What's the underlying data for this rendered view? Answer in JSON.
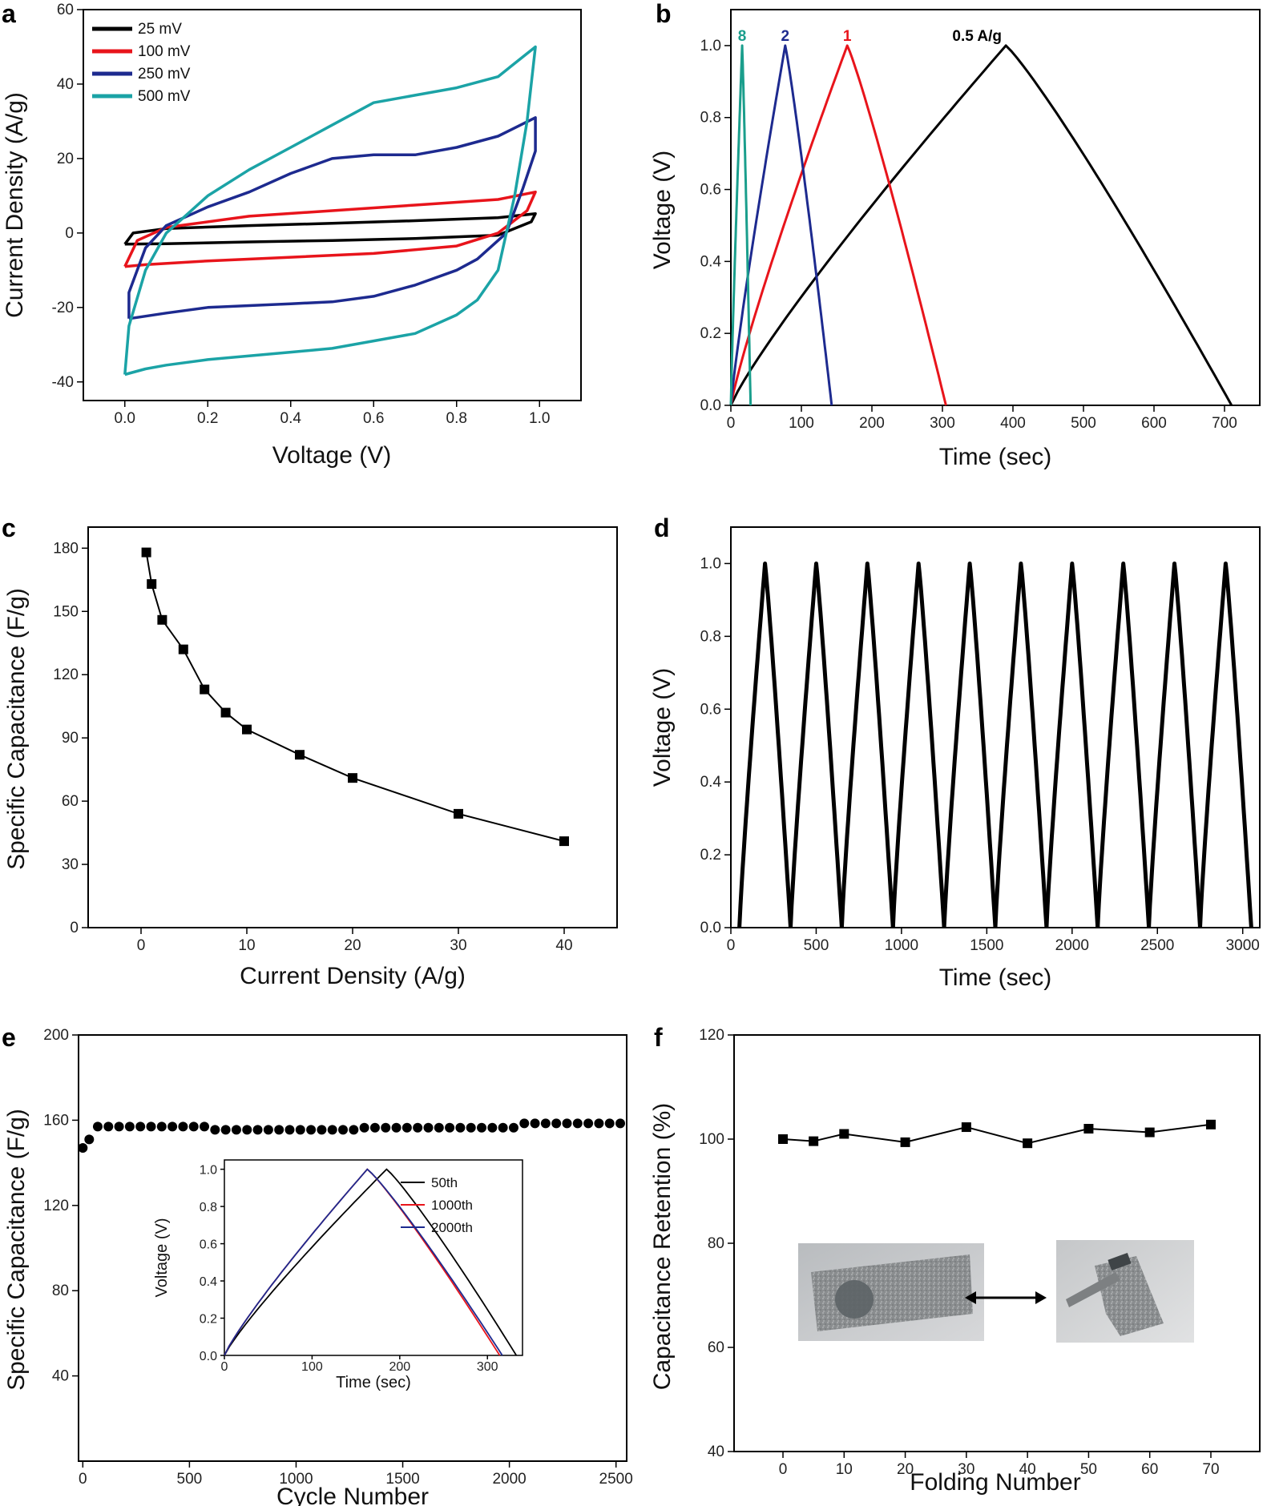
{
  "chart_data": [
    {
      "id": "a",
      "panel_label": "a",
      "type": "line",
      "xlabel": "Voltage (V)",
      "ylabel": "Current Density (A/g)",
      "xlim": [
        -0.1,
        1.1
      ],
      "ylim": [
        -45,
        60
      ],
      "xticks": [
        0.0,
        0.2,
        0.4,
        0.6,
        0.8,
        1.0
      ],
      "xtick_labels": [
        "0.0",
        "0.2",
        "0.4",
        "0.6",
        "0.8",
        "1.0"
      ],
      "yticks": [
        -40,
        -20,
        0,
        20,
        40,
        60
      ],
      "ytick_labels": [
        "-40",
        "-20",
        "0",
        "20",
        "40",
        "60"
      ],
      "legend_position": "top-left",
      "series": [
        {
          "name": "25 mV",
          "color": "#000000",
          "upper": [
            [
              0,
              -3
            ],
            [
              0.02,
              0
            ],
            [
              0.1,
              1.2
            ],
            [
              0.3,
              2
            ],
            [
              0.5,
              2.6
            ],
            [
              0.7,
              3.3
            ],
            [
              0.9,
              4.1
            ],
            [
              0.99,
              5.2
            ]
          ],
          "lower": [
            [
              0.99,
              5.2
            ],
            [
              0.98,
              3
            ],
            [
              0.9,
              -0.6
            ],
            [
              0.7,
              -1.5
            ],
            [
              0.5,
              -2
            ],
            [
              0.3,
              -2.4
            ],
            [
              0.1,
              -2.9
            ],
            [
              0,
              -3
            ]
          ]
        },
        {
          "name": "100 mV",
          "color": "#e8141b",
          "upper": [
            [
              0,
              -9
            ],
            [
              0.03,
              -2
            ],
            [
              0.1,
              1.5
            ],
            [
              0.3,
              4.5
            ],
            [
              0.5,
              6
            ],
            [
              0.7,
              7.5
            ],
            [
              0.9,
              9
            ],
            [
              0.99,
              11
            ]
          ],
          "lower": [
            [
              0.99,
              11
            ],
            [
              0.97,
              6
            ],
            [
              0.9,
              0
            ],
            [
              0.8,
              -3.5
            ],
            [
              0.6,
              -5.5
            ],
            [
              0.4,
              -6.5
            ],
            [
              0.2,
              -7.5
            ],
            [
              0.05,
              -8.5
            ],
            [
              0,
              -9
            ]
          ]
        },
        {
          "name": "250 mV",
          "color": "#1d2a8f",
          "upper": [
            [
              0.01,
              -23
            ],
            [
              0.01,
              -16
            ],
            [
              0.05,
              -4
            ],
            [
              0.1,
              2
            ],
            [
              0.2,
              7
            ],
            [
              0.3,
              11
            ],
            [
              0.4,
              16
            ],
            [
              0.5,
              20
            ],
            [
              0.6,
              21
            ],
            [
              0.7,
              21
            ],
            [
              0.8,
              23
            ],
            [
              0.9,
              26
            ],
            [
              0.99,
              31
            ]
          ],
          "lower": [
            [
              0.99,
              31
            ],
            [
              0.99,
              22
            ],
            [
              0.96,
              12
            ],
            [
              0.92,
              0
            ],
            [
              0.85,
              -7
            ],
            [
              0.8,
              -10
            ],
            [
              0.7,
              -14
            ],
            [
              0.6,
              -17
            ],
            [
              0.5,
              -18.5
            ],
            [
              0.4,
              -19
            ],
            [
              0.3,
              -19.5
            ],
            [
              0.2,
              -20
            ],
            [
              0.1,
              -21.5
            ],
            [
              0.01,
              -23
            ]
          ]
        },
        {
          "name": "500 mV",
          "color": "#1ba3a6",
          "upper": [
            [
              0,
              -38
            ],
            [
              0.01,
              -25
            ],
            [
              0.05,
              -10
            ],
            [
              0.1,
              0
            ],
            [
              0.2,
              10
            ],
            [
              0.3,
              17
            ],
            [
              0.4,
              23
            ],
            [
              0.5,
              29
            ],
            [
              0.6,
              35
            ],
            [
              0.7,
              37
            ],
            [
              0.8,
              39
            ],
            [
              0.9,
              42
            ],
            [
              0.99,
              50
            ]
          ],
          "lower": [
            [
              0.99,
              50
            ],
            [
              0.97,
              30
            ],
            [
              0.94,
              10
            ],
            [
              0.9,
              -10
            ],
            [
              0.85,
              -18
            ],
            [
              0.8,
              -22
            ],
            [
              0.7,
              -27
            ],
            [
              0.6,
              -29
            ],
            [
              0.5,
              -31
            ],
            [
              0.4,
              -32
            ],
            [
              0.3,
              -33
            ],
            [
              0.2,
              -34
            ],
            [
              0.1,
              -35.5
            ],
            [
              0.05,
              -36.5
            ],
            [
              0,
              -38
            ]
          ]
        }
      ]
    },
    {
      "id": "b",
      "panel_label": "b",
      "type": "line",
      "xlabel": "Time (sec)",
      "ylabel": "Voltage (V)",
      "xlim": [
        0,
        750
      ],
      "ylim": [
        0,
        1.1
      ],
      "xticks": [
        0,
        100,
        200,
        300,
        400,
        500,
        600,
        700
      ],
      "xtick_labels": [
        "0",
        "100",
        "200",
        "300",
        "400",
        "500",
        "600",
        "700"
      ],
      "yticks": [
        0.0,
        0.2,
        0.4,
        0.6,
        0.8,
        1.0
      ],
      "ytick_labels": [
        "0.0",
        "0.2",
        "0.4",
        "0.6",
        "0.8",
        "1.0"
      ],
      "series": [
        {
          "name": "0.5 A/g",
          "color": "#000000",
          "peak_time": 390,
          "end_time": 710
        },
        {
          "name": "1",
          "color": "#e8141b",
          "peak_time": 165,
          "end_time": 305
        },
        {
          "name": "2",
          "color": "#1d2a8f",
          "peak_time": 77,
          "end_time": 143
        },
        {
          "name": "8",
          "color": "#1a9e8c",
          "peak_time": 16,
          "end_time": 28
        }
      ]
    },
    {
      "id": "c",
      "panel_label": "c",
      "type": "line",
      "xlabel": "Current Density (A/g)",
      "ylabel": "Specific Capacitance (F/g)",
      "xlim": [
        -5,
        45
      ],
      "ylim": [
        0,
        190
      ],
      "xticks": [
        0,
        10,
        20,
        30,
        40
      ],
      "xtick_labels": [
        "0",
        "10",
        "20",
        "30",
        "40"
      ],
      "yticks": [
        0,
        30,
        60,
        90,
        120,
        150,
        180
      ],
      "ytick_labels": [
        "0",
        "30",
        "60",
        "90",
        "120",
        "150",
        "180"
      ],
      "x": [
        0.5,
        1,
        2,
        4,
        6,
        8,
        10,
        15,
        20,
        30,
        40
      ],
      "values": [
        178,
        163,
        146,
        132,
        113,
        102,
        94,
        82,
        71,
        54,
        41
      ]
    },
    {
      "id": "d",
      "panel_label": "d",
      "type": "line",
      "xlabel": "Time (sec)",
      "ylabel": "Voltage (V)",
      "xlim": [
        0,
        3100
      ],
      "ylim": [
        0,
        1.1
      ],
      "xticks": [
        0,
        500,
        1000,
        1500,
        2000,
        2500,
        3000
      ],
      "xtick_labels": [
        "0",
        "500",
        "1000",
        "1500",
        "2000",
        "2500",
        "3000"
      ],
      "yticks": [
        0.0,
        0.2,
        0.4,
        0.6,
        0.8,
        1.0
      ],
      "ytick_labels": [
        "0.0",
        "0.2",
        "0.4",
        "0.6",
        "0.8",
        "1.0"
      ],
      "cycles": 10,
      "first_start": 50,
      "charge_time": 150,
      "discharge_time": 150,
      "period": 300
    },
    {
      "id": "e",
      "panel_label": "e",
      "type": "scatter",
      "xlabel": "Cycle Number",
      "ylabel": "Specific Capacitance (F/g)",
      "xlim": [
        -20,
        2550
      ],
      "ylim": [
        0,
        200
      ],
      "xticks": [
        0,
        500,
        1000,
        1500,
        2000,
        2500
      ],
      "xtick_labels": [
        "0",
        "500",
        "1000",
        "1500",
        "2000",
        "2500"
      ],
      "yticks": [
        40,
        80,
        120,
        160,
        200
      ],
      "ytick_labels": [
        "40",
        "80",
        "120",
        "160",
        "200"
      ],
      "x": [
        0,
        30,
        70,
        120,
        170,
        220,
        270,
        320,
        370,
        420,
        470,
        520,
        570,
        620,
        670,
        720,
        770,
        820,
        870,
        920,
        970,
        1020,
        1070,
        1120,
        1170,
        1220,
        1270,
        1320,
        1370,
        1420,
        1470,
        1520,
        1570,
        1620,
        1670,
        1720,
        1770,
        1820,
        1870,
        1920,
        1970,
        2020,
        2070,
        2120,
        2170,
        2220,
        2270,
        2320,
        2370,
        2420,
        2470,
        2520
      ],
      "values": [
        147,
        151,
        157,
        157,
        157,
        157,
        157,
        157,
        157,
        157,
        157,
        157,
        157,
        155.5,
        155.5,
        155.5,
        155.5,
        155.5,
        155.5,
        155.5,
        155.5,
        155.5,
        155.5,
        155.5,
        155.5,
        155.5,
        155.5,
        156.5,
        156.5,
        156.5,
        156.5,
        156.5,
        156.5,
        156.5,
        156.5,
        156.5,
        156.5,
        156.5,
        156.5,
        156.5,
        156.5,
        156.5,
        158.5,
        158.5,
        158.5,
        158.5,
        158.5,
        158.5,
        158.5,
        158.5,
        158.5,
        158.5
      ],
      "inset": {
        "xlabel": "Time (sec)",
        "ylabel": "Voltage (V)",
        "xlim": [
          0,
          340
        ],
        "ylim": [
          0,
          1.05
        ],
        "xticks": [
          0,
          100,
          200,
          300
        ],
        "xtick_labels": [
          "0",
          "100",
          "200",
          "300"
        ],
        "yticks": [
          0.0,
          0.2,
          0.4,
          0.6,
          0.8,
          1.0
        ],
        "ytick_labels": [
          "0.0",
          "0.2",
          "0.4",
          "0.6",
          "0.8",
          "1.0"
        ],
        "series": [
          {
            "name": "50th",
            "color": "#000000",
            "peak_time": 185,
            "end_time": 333
          },
          {
            "name": "1000th",
            "color": "#e8141b",
            "peak_time": 163,
            "end_time": 314
          },
          {
            "name": "2000th",
            "color": "#1d2a8f",
            "peak_time": 163,
            "end_time": 317
          }
        ]
      }
    },
    {
      "id": "f",
      "panel_label": "f",
      "type": "line",
      "xlabel": "Folding Number",
      "ylabel": "Capacitance Retention (%)",
      "xlim": [
        -8,
        78
      ],
      "ylim": [
        40,
        120
      ],
      "xticks": [
        0,
        10,
        20,
        30,
        40,
        50,
        60,
        70
      ],
      "xtick_labels": [
        "0",
        "10",
        "20",
        "30",
        "40",
        "50",
        "60",
        "70"
      ],
      "yticks": [
        40,
        60,
        80,
        100,
        120
      ],
      "ytick_labels": [
        "40",
        "60",
        "80",
        "100",
        "120"
      ],
      "x": [
        0,
        5,
        10,
        20,
        30,
        40,
        50,
        60,
        70
      ],
      "values": [
        100,
        99.6,
        101,
        99.4,
        102.3,
        99.2,
        102,
        101.3,
        102.8
      ]
    }
  ]
}
